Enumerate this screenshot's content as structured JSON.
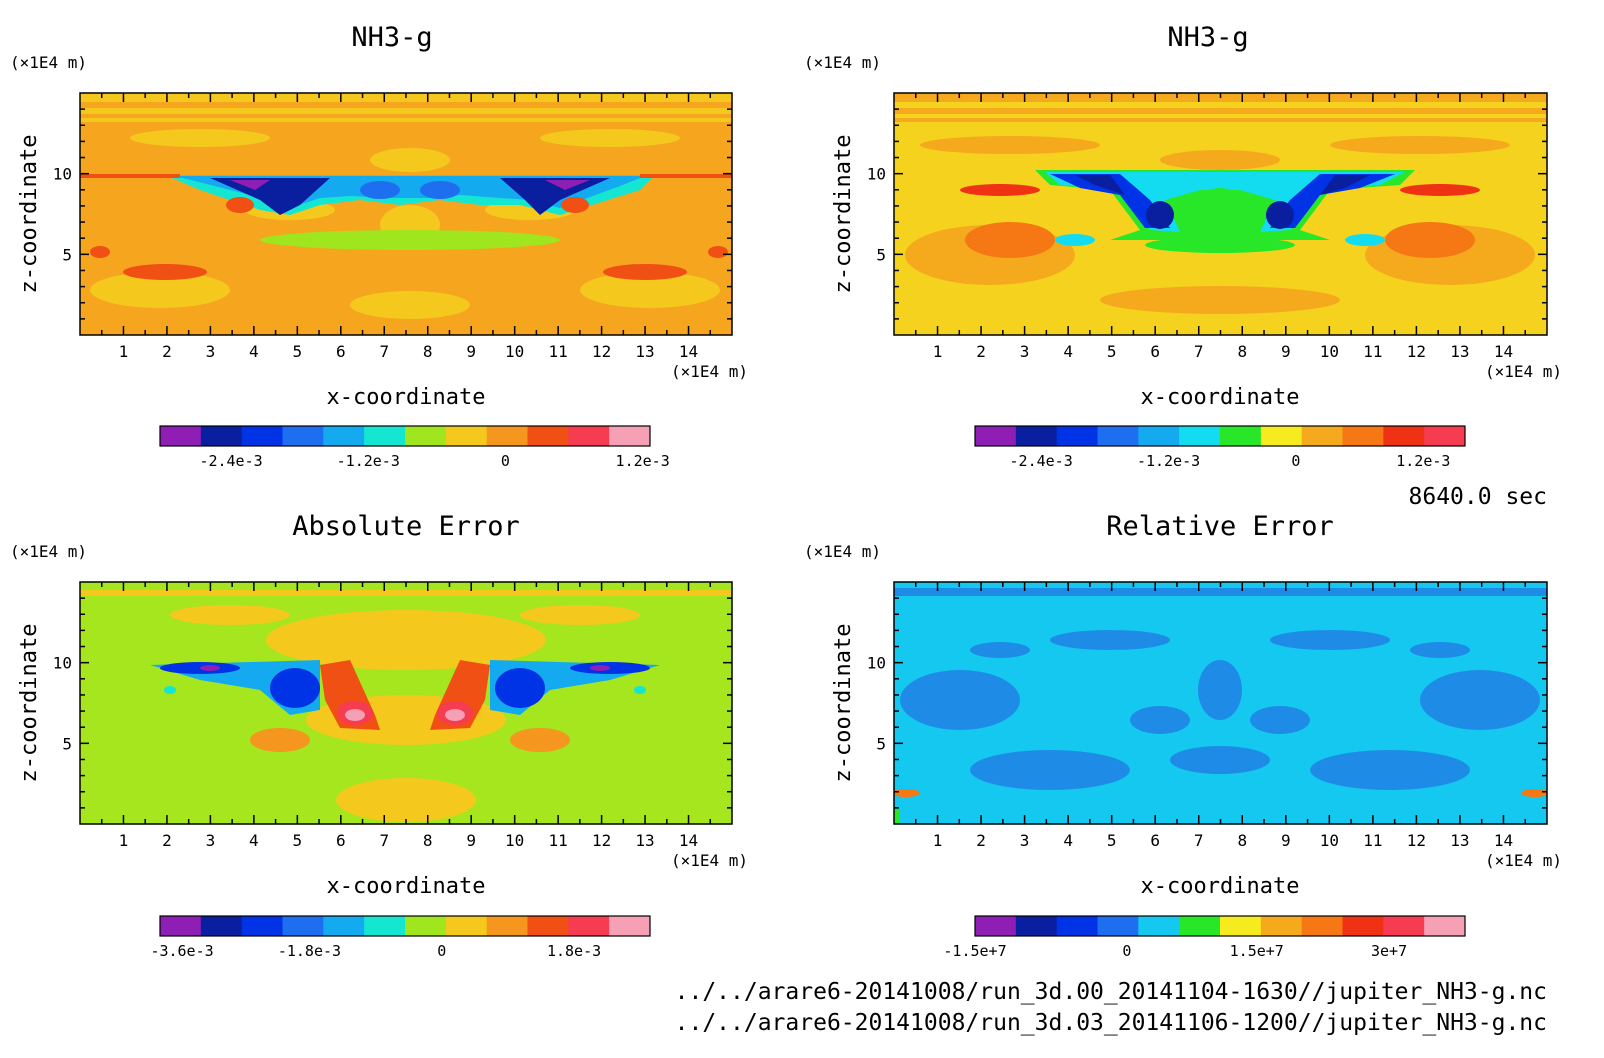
{
  "time_label": "8640.0 sec",
  "file_lines": [
    "../../arare6-20141008/run_3d.00_20141104-1630//jupiter_NH3-g.nc",
    "../../arare6-20141008/run_3d.03_20141106-1200//jupiter_NH3-g.nc"
  ],
  "chart_data": [
    {
      "type": "heatmap",
      "title": "NH3-g",
      "xlabel": "x-coordinate",
      "ylabel": "z-coordinate",
      "x_unit": "(×1E4 m)",
      "z_unit": "(×1E4 m)",
      "xlim": [
        0,
        15
      ],
      "zlim": [
        0,
        15
      ],
      "x_ticks": [
        1,
        2,
        3,
        4,
        5,
        6,
        7,
        8,
        9,
        10,
        11,
        12,
        13,
        14
      ],
      "z_ticks": [
        5,
        10
      ],
      "background_color": "#f5a51e",
      "colorbar": {
        "colors": [
          "#8e1eb4",
          "#0a1ea0",
          "#0032e6",
          "#1e6ef0",
          "#14aaf0",
          "#14e6d2",
          "#a0e61e",
          "#f5c81e",
          "#f5961e",
          "#f05014",
          "#f53c50",
          "#f5a0b4"
        ],
        "labels": [
          "-2.4e-3",
          "-1.2e-3",
          "0",
          "1.2e-3"
        ]
      }
    },
    {
      "type": "heatmap",
      "title": "NH3-g",
      "xlabel": "x-coordinate",
      "ylabel": "z-coordinate",
      "x_unit": "(×1E4 m)",
      "z_unit": "(×1E4 m)",
      "xlim": [
        0,
        15
      ],
      "zlim": [
        0,
        15
      ],
      "x_ticks": [
        1,
        2,
        3,
        4,
        5,
        6,
        7,
        8,
        9,
        10,
        11,
        12,
        13,
        14
      ],
      "z_ticks": [
        5,
        10
      ],
      "background_color": "#f5d21e",
      "colorbar": {
        "colors": [
          "#8e1eb4",
          "#0a1ea0",
          "#0032e6",
          "#1e6ef0",
          "#14aaf0",
          "#14dcf0",
          "#28e628",
          "#f5eb1e",
          "#f5aa1e",
          "#f57814",
          "#f03214",
          "#f53c50"
        ],
        "labels": [
          "-2.4e-3",
          "-1.2e-3",
          "0",
          "1.2e-3"
        ]
      }
    },
    {
      "type": "heatmap",
      "title": "Absolute Error",
      "xlabel": "x-coordinate",
      "ylabel": "z-coordinate",
      "x_unit": "(×1E4 m)",
      "z_unit": "(×1E4 m)",
      "xlim": [
        0,
        15
      ],
      "zlim": [
        0,
        15
      ],
      "x_ticks": [
        1,
        2,
        3,
        4,
        5,
        6,
        7,
        8,
        9,
        10,
        11,
        12,
        13,
        14
      ],
      "z_ticks": [
        5,
        10
      ],
      "background_color": "#a5e61e",
      "colorbar": {
        "colors": [
          "#8e1eb4",
          "#0a1ea0",
          "#0032e6",
          "#1e6ef0",
          "#14aaf0",
          "#14e6d2",
          "#a0e61e",
          "#f5c81e",
          "#f5961e",
          "#f05014",
          "#f53c50",
          "#f5a0b4"
        ],
        "labels": [
          "-3.6e-3",
          "-1.8e-3",
          "0",
          "1.8e-3"
        ]
      }
    },
    {
      "type": "heatmap",
      "title": "Relative Error",
      "xlabel": "x-coordinate",
      "ylabel": "z-coordinate",
      "x_unit": "(×1E4 m)",
      "z_unit": "(×1E4 m)",
      "xlim": [
        0,
        15
      ],
      "zlim": [
        0,
        15
      ],
      "x_ticks": [
        1,
        2,
        3,
        4,
        5,
        6,
        7,
        8,
        9,
        10,
        11,
        12,
        13,
        14
      ],
      "z_ticks": [
        5,
        10
      ],
      "background_color": "#14c8f0",
      "colorbar": {
        "colors": [
          "#8e1eb4",
          "#0a1ea0",
          "#0032e6",
          "#1e6ef0",
          "#14c8f0",
          "#28e628",
          "#f5eb1e",
          "#f5aa1e",
          "#f57814",
          "#f03214",
          "#f53c50",
          "#f5a0b4"
        ],
        "labels": [
          "-1.5e+7",
          "0",
          "1.5e+7",
          "3e+7"
        ]
      }
    }
  ]
}
